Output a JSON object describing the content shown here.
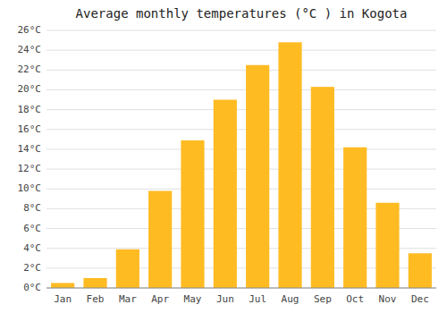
{
  "chart_data": {
    "type": "bar",
    "title": "Average monthly temperatures (°C ) in Kogota",
    "categories": [
      "Jan",
      "Feb",
      "Mar",
      "Apr",
      "May",
      "Jun",
      "Jul",
      "Aug",
      "Sep",
      "Oct",
      "Nov",
      "Dec"
    ],
    "values": [
      0.5,
      1.0,
      3.9,
      9.8,
      14.9,
      19.0,
      22.5,
      24.8,
      20.3,
      14.2,
      8.6,
      3.5
    ],
    "color": "#FFBB22",
    "ylim": [
      0,
      26
    ],
    "yticks": [
      {
        "value": 0,
        "label": "0°C"
      },
      {
        "value": 2,
        "label": "2°C"
      },
      {
        "value": 4,
        "label": "4°C"
      },
      {
        "value": 6,
        "label": "6°C"
      },
      {
        "value": 8,
        "label": "8°C"
      },
      {
        "value": 10,
        "label": "10°C"
      },
      {
        "value": 12,
        "label": "12°C"
      },
      {
        "value": 14,
        "label": "14°C"
      },
      {
        "value": 16,
        "label": "16°C"
      },
      {
        "value": 18,
        "label": "18°C"
      },
      {
        "value": 20,
        "label": "20°C"
      },
      {
        "value": 22,
        "label": "22°C"
      },
      {
        "value": 24,
        "label": "24°C"
      },
      {
        "value": 26,
        "label": "26°C"
      }
    ],
    "grid": true
  }
}
